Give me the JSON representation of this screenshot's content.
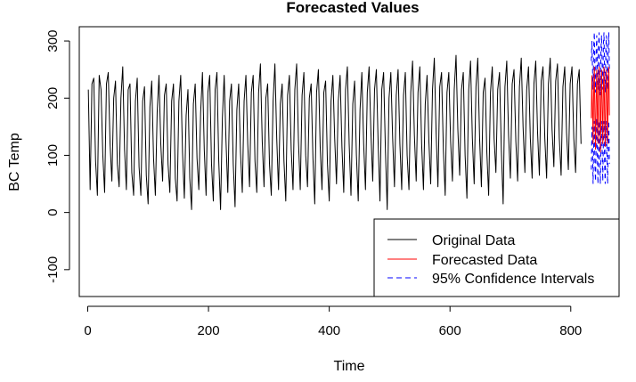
{
  "chart_data": {
    "type": "line",
    "title": "Forecasted Values",
    "xlabel": "Time",
    "ylabel": "BC Temp",
    "xlim": [
      -14,
      880
    ],
    "ylim": [
      -147,
      325
    ],
    "x_ticks": [
      0,
      200,
      400,
      600,
      800
    ],
    "y_ticks": [
      -100,
      0,
      100,
      200,
      300
    ],
    "legend_position": "bottom-right",
    "grid": false,
    "colors": {
      "original": "#000000",
      "forecast": "#ff0000",
      "ci": "#0000ff"
    },
    "original": {
      "x_start": 1,
      "values": [
        215,
        40,
        225,
        235,
        90,
        30,
        240,
        215,
        100,
        35,
        225,
        245,
        120,
        55,
        200,
        230,
        85,
        45,
        200,
        255,
        110,
        40,
        215,
        225,
        70,
        30,
        195,
        235,
        80,
        30,
        195,
        220,
        65,
        15,
        185,
        230,
        95,
        30,
        175,
        240,
        120,
        55,
        205,
        225,
        85,
        35,
        195,
        225,
        60,
        20,
        195,
        240,
        105,
        25,
        170,
        215,
        60,
        5,
        190,
        225,
        95,
        40,
        175,
        245,
        110,
        30,
        210,
        240,
        85,
        20,
        215,
        245,
        90,
        5,
        165,
        240,
        125,
        35,
        195,
        225,
        85,
        10,
        180,
        225,
        105,
        35,
        195,
        240,
        120,
        45,
        210,
        240,
        90,
        35,
        210,
        260,
        125,
        45,
        200,
        225,
        85,
        30,
        195,
        260,
        130,
        40,
        190,
        225,
        90,
        20,
        205,
        240,
        110,
        40,
        215,
        260,
        125,
        40,
        205,
        245,
        100,
        45,
        200,
        225,
        95,
        15,
        210,
        250,
        115,
        40,
        210,
        230,
        85,
        20,
        195,
        240,
        130,
        50,
        195,
        240,
        115,
        35,
        215,
        255,
        120,
        30,
        190,
        230,
        100,
        20,
        180,
        245,
        120,
        40,
        210,
        255,
        140,
        55,
        215,
        250,
        120,
        20,
        215,
        245,
        110,
        5,
        200,
        245,
        130,
        45,
        205,
        250,
        120,
        40,
        205,
        245,
        100,
        40,
        210,
        265,
        135,
        55,
        210,
        255,
        120,
        40,
        190,
        240,
        125,
        50,
        215,
        270,
        140,
        45,
        220,
        245,
        110,
        30,
        210,
        245,
        125,
        55,
        215,
        275,
        145,
        65,
        215,
        245,
        100,
        25,
        215,
        265,
        130,
        50,
        220,
        270,
        130,
        45,
        210,
        235,
        105,
        30,
        210,
        255,
        130,
        70,
        215,
        245,
        110,
        15,
        220,
        265,
        135,
        60,
        225,
        250,
        125,
        55,
        220,
        270,
        150,
        70,
        215,
        255,
        130,
        60,
        225,
        265,
        140,
        65,
        230,
        255,
        130,
        60,
        225,
        270,
        145,
        80,
        230,
        260,
        130,
        65,
        220,
        255,
        140,
        75,
        225,
        255,
        130,
        70,
        225,
        250,
        120
      ]
    },
    "forecast": {
      "x_start": 834,
      "values": [
        165,
        240,
        180,
        120,
        210,
        255,
        165,
        110,
        195,
        250,
        175,
        120,
        220,
        255,
        165,
        105,
        200,
        250,
        180,
        120,
        215,
        255,
        170,
        115,
        205,
        250,
        180,
        120,
        215,
        255,
        170
      ]
    },
    "upper_ci": {
      "x_start": 834,
      "values": [
        265,
        300,
        250,
        215,
        290,
        315,
        245,
        210,
        280,
        310,
        250,
        215,
        295,
        315,
        240,
        205,
        285,
        310,
        250,
        215,
        295,
        315,
        245,
        210,
        285,
        310,
        250,
        215,
        295,
        315,
        245
      ]
    },
    "lower_ci": {
      "x_start": 834,
      "values": [
        75,
        150,
        110,
        50,
        120,
        160,
        85,
        55,
        110,
        165,
        100,
        50,
        120,
        160,
        80,
        50,
        115,
        160,
        105,
        55,
        125,
        160,
        85,
        50,
        115,
        160,
        100,
        50,
        120,
        160,
        85
      ]
    },
    "legend": [
      {
        "label": "Original Data",
        "series": "original"
      },
      {
        "label": "Forecasted Data",
        "series": "forecast"
      },
      {
        "label": "95% Confidence Intervals",
        "series": "ci"
      }
    ]
  }
}
